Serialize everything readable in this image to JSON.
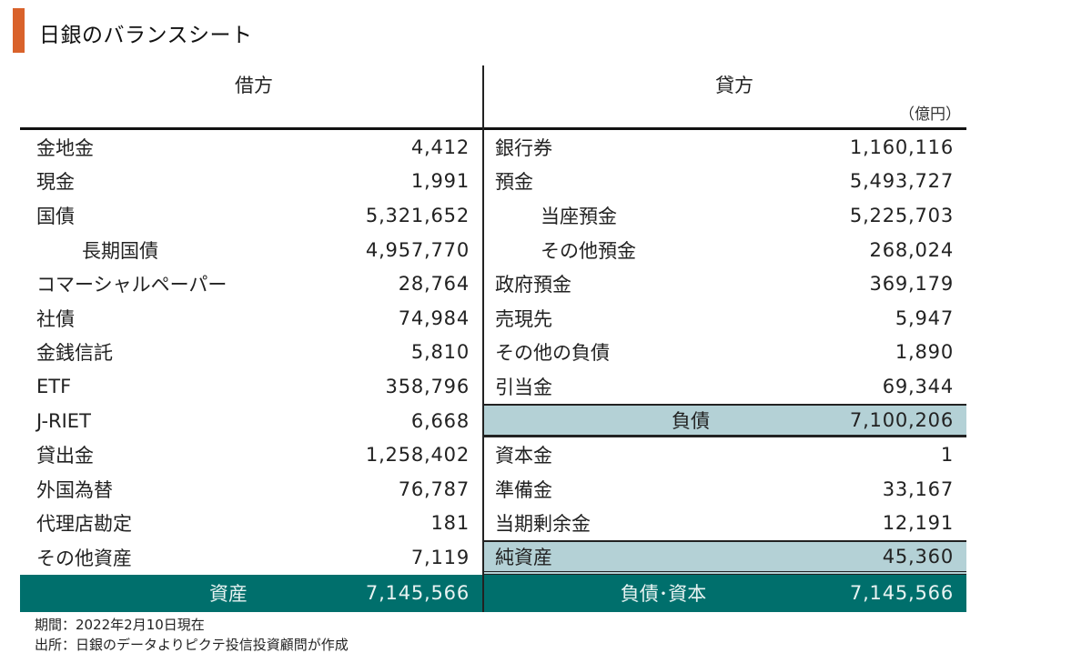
{
  "title": "日銀のバランスシート",
  "colors": {
    "accent": "#d9622b",
    "subtotal": "#b4d1d6",
    "total": "#006f6c"
  },
  "debit": {
    "header": "借方",
    "rows": [
      {
        "label": "金地金",
        "value": "4,412",
        "indent": false
      },
      {
        "label": "現金",
        "value": "1,991",
        "indent": false
      },
      {
        "label": "国債",
        "value": "5,321,652",
        "indent": false
      },
      {
        "label": "長期国債",
        "value": "4,957,770",
        "indent": true
      },
      {
        "label": "コマーシャルペーパー",
        "value": "28,764",
        "indent": false
      },
      {
        "label": "社債",
        "value": "74,984",
        "indent": false
      },
      {
        "label": "金銭信託",
        "value": "5,810",
        "indent": false
      },
      {
        "label": "ETF",
        "value": "358,796",
        "indent": false
      },
      {
        "label": "J-RIET",
        "value": "6,668",
        "indent": false
      },
      {
        "label": "貸出金",
        "value": "1,258,402",
        "indent": false
      },
      {
        "label": "外国為替",
        "value": "76,787",
        "indent": false
      },
      {
        "label": "代理店勘定",
        "value": "181",
        "indent": false
      },
      {
        "label": "その他資産",
        "value": "7,119",
        "indent": false
      }
    ],
    "total": {
      "label": "資産",
      "value": "7,145,566"
    }
  },
  "credit": {
    "header": "貸方",
    "unit": "（億円）",
    "rows": [
      {
        "label": "銀行券",
        "value": "1,160,116",
        "indent": false
      },
      {
        "label": "預金",
        "value": "5,493,727",
        "indent": false
      },
      {
        "label": "当座預金",
        "value": "5,225,703",
        "indent": true
      },
      {
        "label": "その他預金",
        "value": "268,024",
        "indent": true
      },
      {
        "label": "政府預金",
        "value": "369,179",
        "indent": false
      },
      {
        "label": "売現先",
        "value": "5,947",
        "indent": false
      },
      {
        "label": "その他の負債",
        "value": "1,890",
        "indent": false
      },
      {
        "label": "引当金",
        "value": "69,344",
        "indent": false
      }
    ],
    "liabilities_subtotal": {
      "label": "負債",
      "value": "7,100,206"
    },
    "equity_rows": [
      {
        "label": "資本金",
        "value": "1"
      },
      {
        "label": "準備金",
        "value": "33,167"
      },
      {
        "label": "当期剰余金",
        "value": "12,191"
      }
    ],
    "equity_subtotal": {
      "label": "純資産",
      "value": "45,360"
    },
    "total": {
      "label": "負債･資本",
      "value": "7,145,566"
    }
  },
  "notes": {
    "period": "期間：2022年2月10日現在",
    "source": "出所：日銀のデータよりピクテ投信投資顧問が作成"
  }
}
